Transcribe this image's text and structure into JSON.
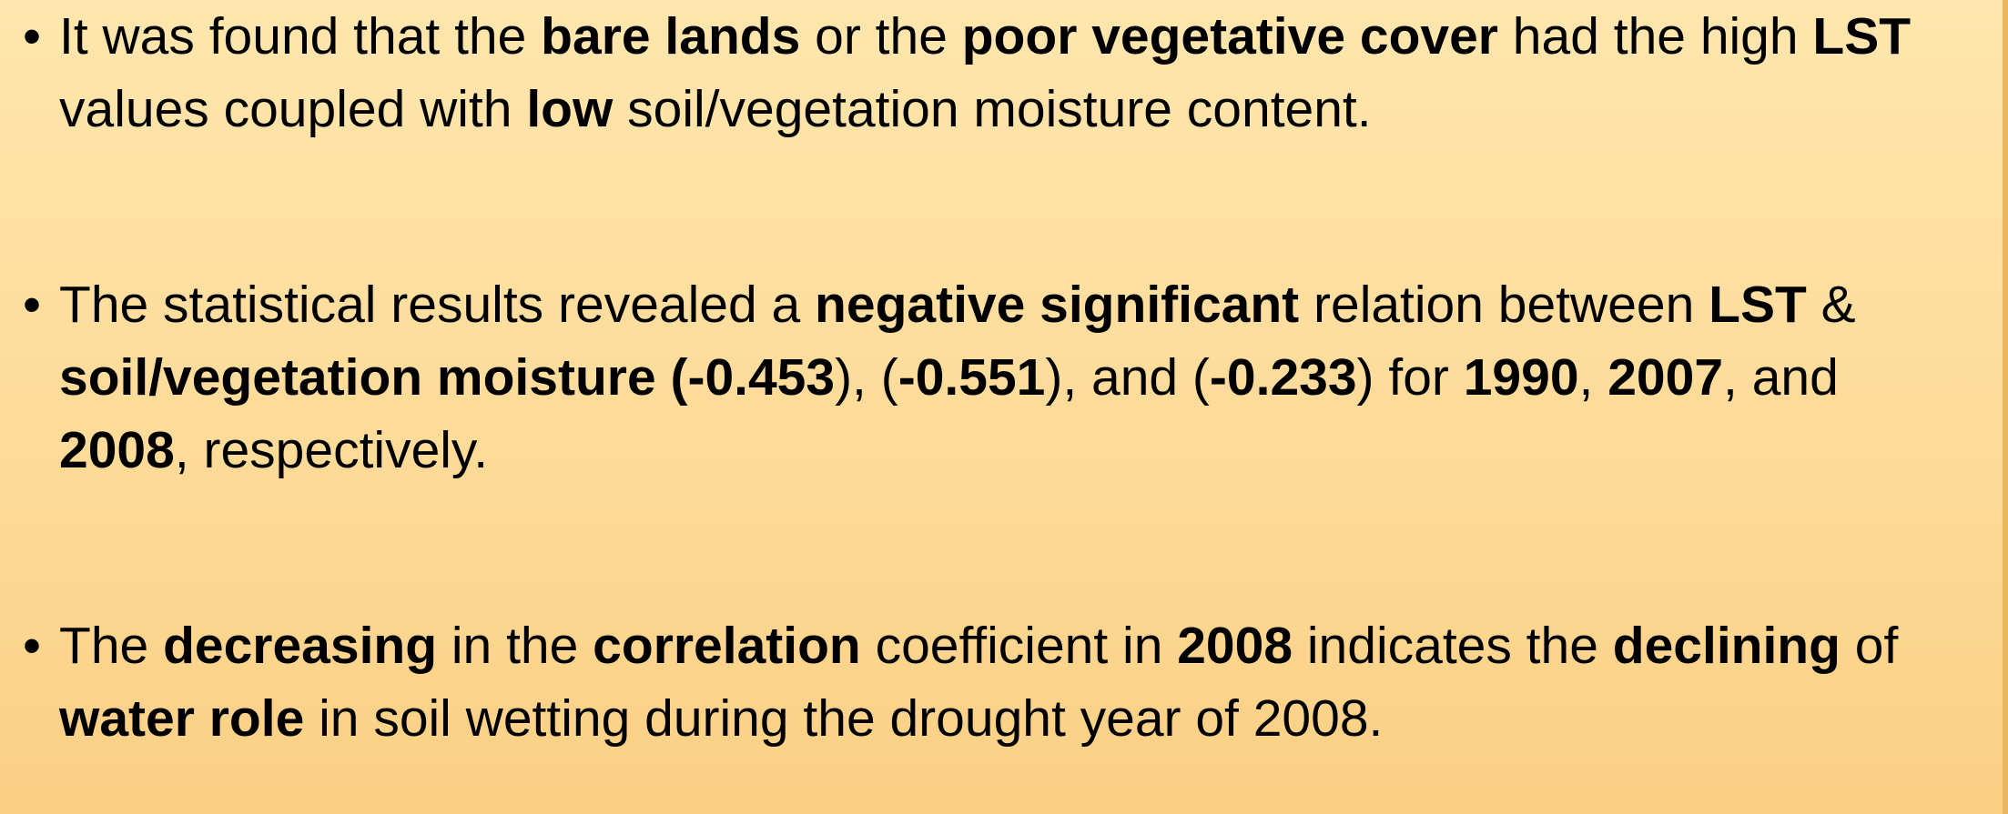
{
  "bullets": [
    {
      "runs": [
        {
          "text": "It was found that the ",
          "bold": false
        },
        {
          "text": "bare lands",
          "bold": true
        },
        {
          "text": " or the ",
          "bold": false
        },
        {
          "text": "poor vegetative cover",
          "bold": true
        },
        {
          "text": " had the high ",
          "bold": false
        },
        {
          "text": "LST",
          "bold": true
        },
        {
          "text": " values coupled with ",
          "bold": false
        },
        {
          "text": "low",
          "bold": true
        },
        {
          "text": " soil/vegetation moisture content.",
          "bold": false
        }
      ]
    },
    {
      "runs": [
        {
          "text": "The statistical results revealed a ",
          "bold": false
        },
        {
          "text": "negative significant",
          "bold": true
        },
        {
          "text": " relation between ",
          "bold": false
        },
        {
          "text": "LST",
          "bold": true
        },
        {
          "text": " & ",
          "bold": false
        },
        {
          "text": "soil/vegetation moisture (-0.453",
          "bold": true
        },
        {
          "text": "), (",
          "bold": false
        },
        {
          "text": "-0.551",
          "bold": true
        },
        {
          "text": "), and (",
          "bold": false
        },
        {
          "text": "-0.233",
          "bold": true
        },
        {
          "text": ") for ",
          "bold": false
        },
        {
          "text": "1990",
          "bold": true
        },
        {
          "text": ", ",
          "bold": false
        },
        {
          "text": "2007",
          "bold": true
        },
        {
          "text": ", and ",
          "bold": false
        },
        {
          "text": "2008",
          "bold": true
        },
        {
          "text": ", respectively.",
          "bold": false
        }
      ]
    },
    {
      "runs": [
        {
          "text": "The ",
          "bold": false
        },
        {
          "text": "decreasing",
          "bold": true
        },
        {
          "text": " in the ",
          "bold": false
        },
        {
          "text": "correlation",
          "bold": true
        },
        {
          "text": " coefficient in ",
          "bold": false
        },
        {
          "text": "2008",
          "bold": true
        },
        {
          "text": " indicates the ",
          "bold": false
        },
        {
          "text": "declining",
          "bold": true
        },
        {
          "text": " of ",
          "bold": false
        },
        {
          "text": "water role",
          "bold": true
        },
        {
          "text": " in soil wetting during the drought year of 2008.",
          "bold": false
        }
      ]
    }
  ]
}
